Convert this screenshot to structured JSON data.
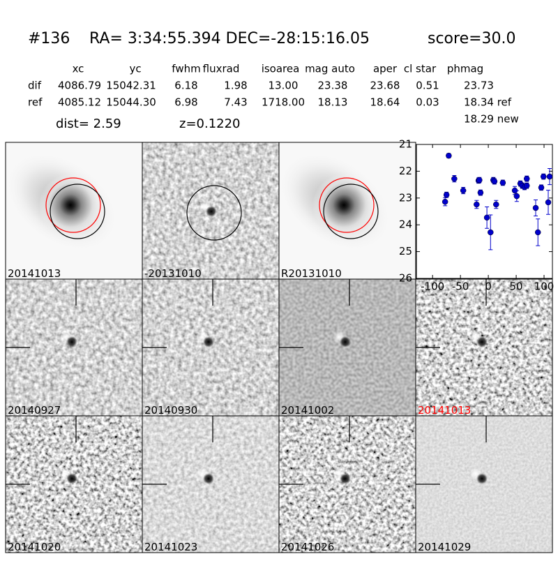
{
  "header": {
    "id": "#136",
    "coords": "RA= 3:34:55.394 DEC=-28:15:16.05",
    "score": "score=30.0"
  },
  "table": {
    "columns": [
      "xc",
      "yc",
      "fwhm",
      "fluxrad",
      "isoarea",
      "mag auto",
      "aper",
      "cl star",
      "phmag"
    ],
    "rows": [
      {
        "label": "dif",
        "cells": [
          "4086.79",
          "15042.31",
          "6.18",
          "1.98",
          "13.00",
          "23.38",
          "23.68",
          "0.51",
          "23.73"
        ]
      },
      {
        "label": "ref",
        "cells": [
          "4085.12",
          "15044.30",
          "6.98",
          "7.43",
          "1718.00",
          "18.13",
          "18.64",
          "0.03",
          "18.34 ref"
        ]
      }
    ],
    "extra": "18.29 new"
  },
  "dist": "dist=  2.59",
  "z": "z=0.1220",
  "panels": [
    {
      "label": "20141013",
      "label_color": "#000000"
    },
    {
      "label": "-20131010",
      "label_color": "#000000"
    },
    {
      "label": "R20131010",
      "label_color": "#000000"
    },
    {
      "label": "20140927",
      "label_color": "#000000"
    },
    {
      "label": "20140930",
      "label_color": "#000000"
    },
    {
      "label": "20141002",
      "label_color": "#000000"
    },
    {
      "label": "20141013",
      "label_color": "#ff0000"
    },
    {
      "label": "20141020",
      "label_color": "#000000"
    },
    {
      "label": "20141023",
      "label_color": "#000000"
    },
    {
      "label": "20141026",
      "label_color": "#000000"
    },
    {
      "label": "20141029",
      "label_color": "#000000"
    }
  ],
  "chart_data": {
    "type": "scatter",
    "color": "#0000cc",
    "x": [
      -77.5,
      -75,
      -71,
      -61,
      -45,
      -21,
      -17.5,
      -16,
      -14,
      -2.5,
      4,
      9,
      11,
      14,
      26,
      47.5,
      51,
      57.5,
      61,
      65,
      69,
      69,
      85,
      89,
      95,
      99,
      107.5,
      110
    ],
    "values": [
      23.14,
      22.88,
      21.42,
      22.28,
      22.72,
      23.24,
      22.35,
      22.33,
      22.8,
      23.73,
      24.28,
      22.33,
      22.38,
      23.24,
      22.43,
      22.72,
      22.93,
      22.46,
      22.54,
      22.59,
      22.28,
      22.54,
      23.37,
      24.28,
      22.61,
      22.2,
      23.16,
      22.2
    ],
    "errors": [
      0.15,
      0.1,
      0.08,
      0.12,
      0.12,
      0.15,
      0.1,
      0.1,
      0.1,
      0.4,
      0.65,
      0.1,
      0.1,
      0.15,
      0.1,
      0.15,
      0.2,
      0.1,
      0.1,
      0.1,
      0.1,
      0.1,
      0.3,
      0.5,
      0.1,
      0.1,
      0.45,
      0.3
    ],
    "xlim": [
      -129,
      115
    ],
    "ylim": [
      26,
      21
    ],
    "xticks": [
      -100,
      -50,
      0,
      50,
      100
    ],
    "yticks": [
      21,
      22,
      23,
      24,
      25,
      26
    ]
  }
}
